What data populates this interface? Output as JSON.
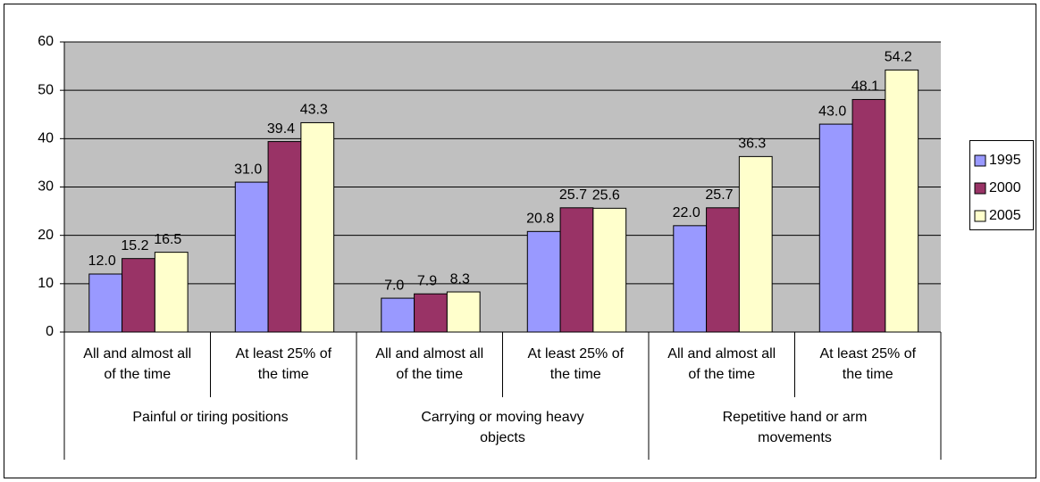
{
  "chart_data": {
    "type": "bar",
    "categories": [
      "All and almost all of the time",
      "At least 25% of the time",
      "All and almost all of the time",
      "At least 25% of the time",
      "All and almost all of the time",
      "At least 25% of the time"
    ],
    "category_groups": [
      "Painful or tiring positions",
      "Carrying or moving  heavy objects",
      "Repetitive hand or arm movements"
    ],
    "series": [
      {
        "name": "1995",
        "color": "#9999ff",
        "values": [
          12,
          31,
          7,
          20.8,
          22,
          43
        ],
        "value_labels": [
          "12.0",
          "31.0",
          "7.0",
          "20.8",
          "22.0",
          "43.0"
        ]
      },
      {
        "name": "2000",
        "color": "#993366",
        "values": [
          15.2,
          39.4,
          7.9,
          25.7,
          25.7,
          48.1
        ]
      },
      {
        "name": "2005",
        "color": "#ffffcc",
        "values": [
          16.5,
          43.3,
          8.3,
          25.6,
          36.3,
          54.2
        ]
      }
    ],
    "ylim": [
      0,
      60
    ],
    "yticks": [
      0,
      10,
      20,
      30,
      40,
      50,
      60
    ],
    "grid": true,
    "legend": "right",
    "background": "#c0c0c0"
  }
}
